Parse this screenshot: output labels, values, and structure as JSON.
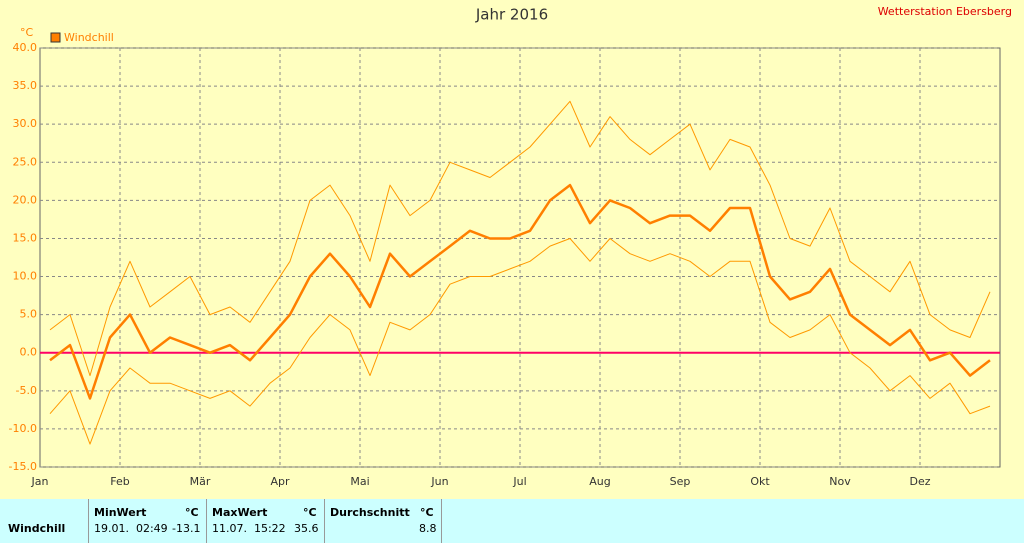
{
  "chart_data": {
    "type": "line",
    "title": "Jahr 2016",
    "station": "Wetterstation Ebersberg",
    "y_unit": "°C",
    "categories": [
      "Jan",
      null,
      null,
      null,
      "Feb",
      null,
      null,
      null,
      "Mär",
      null,
      null,
      null,
      "Apr",
      null,
      null,
      null,
      "Mai",
      null,
      null,
      null,
      "Jun",
      null,
      null,
      null,
      "Jul",
      null,
      null,
      null,
      "Aug",
      null,
      null,
      null,
      "Sep",
      null,
      null,
      null,
      "Okt",
      null,
      null,
      null,
      "Nov",
      null,
      null,
      null,
      "Dez",
      null,
      null,
      null
    ],
    "series": [
      {
        "color": "#ff9900",
        "width": 1,
        "values": [
          3,
          5,
          -3,
          6,
          12,
          6,
          8,
          10,
          5,
          6,
          4,
          8,
          12,
          20,
          22,
          18,
          12,
          22,
          18,
          20,
          25,
          24,
          23,
          25,
          27,
          30,
          33,
          27,
          31,
          28,
          26,
          28,
          30,
          24,
          28,
          27,
          22,
          15,
          14,
          19,
          12,
          10,
          8,
          12,
          5,
          3,
          2,
          8
        ]
      },
      {
        "color": "#ff9900",
        "width": 1,
        "values": [
          -8,
          -5,
          -12,
          -5,
          -2,
          -4,
          -4,
          -5,
          -6,
          -5,
          -7,
          -4,
          -2,
          2,
          5,
          3,
          -3,
          4,
          3,
          5,
          9,
          10,
          10,
          11,
          12,
          14,
          15,
          12,
          15,
          13,
          12,
          13,
          12,
          10,
          12,
          12,
          4,
          2,
          3,
          5,
          0,
          -2,
          -5,
          -3,
          -6,
          -4,
          -8,
          -7
        ]
      },
      {
        "name": "Windchill",
        "color": "#ff7f00",
        "width": 2.5,
        "values": [
          -1,
          1,
          -6,
          2,
          5,
          0,
          2,
          1,
          0,
          1,
          -1,
          2,
          5,
          10,
          13,
          10,
          6,
          13,
          10,
          12,
          14,
          16,
          15,
          15,
          16,
          20,
          22,
          17,
          20,
          19,
          17,
          18,
          18,
          16,
          19,
          19,
          10,
          7,
          8,
          11,
          5,
          3,
          1,
          3,
          -1,
          0,
          -3,
          -1
        ]
      }
    ],
    "zero_line": {
      "value": 0,
      "color": "#ff0066"
    },
    "ylim": [
      -15,
      40
    ],
    "yticks": [
      {
        "value": -15,
        "label": "-15.0"
      },
      {
        "value": -10,
        "label": "-10.0"
      },
      {
        "value": -5,
        "label": "-5.0"
      },
      {
        "value": 0,
        "label": "0.0"
      },
      {
        "value": 5,
        "label": "5.0"
      },
      {
        "value": 10,
        "label": "10.0"
      },
      {
        "value": 15,
        "label": "15.0"
      },
      {
        "value": 20,
        "label": "20.0"
      },
      {
        "value": 25,
        "label": "25.0"
      },
      {
        "value": 30,
        "label": "30.0"
      },
      {
        "value": 35,
        "label": "35.0"
      },
      {
        "value": 40,
        "label": "40.0"
      }
    ],
    "grid": true
  },
  "table": {
    "headers": [
      "MinWert",
      "°C",
      "MaxWert",
      "°C",
      "Durchschnitt",
      "°C"
    ],
    "row": {
      "label": "Windchill",
      "min_time": "19.01.  02:49",
      "min_value": -13.1,
      "max_time": "11.07.  15:22",
      "max_value": 35.6,
      "avg": 8.8
    }
  }
}
